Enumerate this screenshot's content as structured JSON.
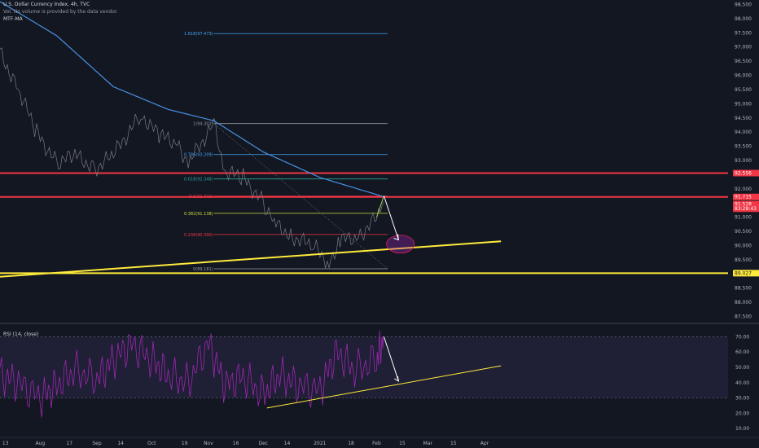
{
  "header": {
    "title": "U.S. Dollar Currency Index, 4h, TVC",
    "volume_note": "Vol. No volume is provided by the data vendor.",
    "indicator": "MTF-MA"
  },
  "rsi_title": "RSI (14, close)",
  "colors": {
    "background": "#131722",
    "price_line": "#787b86",
    "ma_line": "#4a90e2",
    "resistance": "#f23645",
    "support": "#ffeb3b",
    "rsi_line": "#9c27b0",
    "rsi_band": "#7e57c2",
    "arrow": "#ffffff"
  },
  "chart_data": [
    {
      "type": "line",
      "title": "U.S. Dollar Currency Index, 4h, TVC",
      "x_ticks": [
        "13",
        "Aug",
        "17",
        "Sep",
        "14",
        "Oct",
        "19",
        "Nov",
        "16",
        "Dec",
        "14",
        "2021",
        "18",
        "Feb",
        "15",
        "Mar",
        "15",
        "Apr"
      ],
      "y_ticks": [
        "98.500",
        "98.000",
        "97.500",
        "97.000",
        "96.500",
        "96.000",
        "95.500",
        "95.000",
        "94.500",
        "94.000",
        "93.500",
        "93.000",
        "92.500",
        "92.000",
        "91.500",
        "91.000",
        "90.500",
        "90.000",
        "89.500",
        "89.000",
        "88.500",
        "88.000",
        "87.500"
      ],
      "ylim": [
        87.4,
        98.6
      ],
      "price_badges": [
        {
          "value": "92.556",
          "color": "#f23645"
        },
        {
          "value": "91.715",
          "color": "#f23645"
        },
        {
          "value": "91.528",
          "color": "#f23645"
        },
        {
          "value": "83:28:43",
          "color": "#f23645"
        },
        {
          "value": "89.027",
          "color": "#ffeb3b"
        }
      ],
      "series": [
        {
          "name": "",
          "x": [
            "Jul 10",
            "Jul 20",
            "Jul 30",
            "Aug 10",
            "Aug 20",
            "Aug 31",
            "Sep 10",
            "Sep 25",
            "Oct 5",
            "Oct 15",
            "Oct 21",
            "Nov 4",
            "Nov 10",
            "Nov 20",
            "Dec 1",
            "Dec 7",
            "Dec 17",
            "Dec 28",
            "Jan 6",
            "Jan 12",
            "Jan 22",
            "Feb 1",
            "Feb 5"
          ],
          "y": [
            96.8,
            95.5,
            94.0,
            92.9,
            93.2,
            92.7,
            93.2,
            94.6,
            93.9,
            93.6,
            92.9,
            94.3,
            92.6,
            92.4,
            91.5,
            90.8,
            90.3,
            90.0,
            89.4,
            90.2,
            90.3,
            91.0,
            91.55
          ]
        },
        {
          "name": "",
          "x": [
            "Jul 10",
            "Aug 10",
            "Sep 10",
            "Oct 10",
            "Nov 4",
            "Dec 1",
            "Jan 1",
            "Feb 5"
          ],
          "y": [
            98.6,
            97.4,
            95.6,
            94.8,
            94.4,
            93.3,
            92.4,
            91.72
          ]
        }
      ],
      "fibonacci": [
        {
          "ratio": "1.618",
          "label": "1.618(97.473)",
          "value": 97.473,
          "color": "#42a5f5"
        },
        {
          "ratio": "1",
          "label": "1(94.302)",
          "value": 94.302,
          "color": "#9598a1"
        },
        {
          "ratio": "0.786",
          "label": "0.786(93.209)",
          "value": 93.209,
          "color": "#42a5f5"
        },
        {
          "ratio": "0.618",
          "label": "0.618(92.348)",
          "value": 92.348,
          "color": "#26a69a"
        },
        {
          "ratio": "0.5",
          "label": "0.5(91.743)",
          "value": 91.743,
          "color": "#f23645"
        },
        {
          "ratio": "0.382",
          "label": "0.382(91.138)",
          "value": 91.138,
          "color": "#cddc39"
        },
        {
          "ratio": "0.236",
          "label": "0.236(90.390)",
          "value": 90.39,
          "color": "#f23645"
        },
        {
          "ratio": "0",
          "label": "0(89.181)",
          "value": 89.181,
          "color": "#9598a1"
        }
      ],
      "horizontal_lines": [
        {
          "value": 92.556,
          "color": "#f23645"
        },
        {
          "value": 91.715,
          "color": "#f23645"
        },
        {
          "value": 89.027,
          "color": "#ffeb3b"
        }
      ],
      "trendline": {
        "from": [
          "Jul 10",
          88.9
        ],
        "to": [
          "Apr 10",
          90.15
        ],
        "color": "#ffeb3b"
      },
      "projection_arrow": {
        "from": [
          "Feb 5",
          91.75
        ],
        "to": [
          "Feb 13",
          90.2
        ]
      },
      "target_zone": {
        "center": [
          "Feb 14",
          90.05
        ]
      }
    },
    {
      "type": "line",
      "title": "RSI (14, close)",
      "y_ticks": [
        "70.00",
        "60.00",
        "50.00",
        "40.00",
        "30.00",
        "20.00",
        "10.00"
      ],
      "ylim": [
        8,
        75
      ],
      "band": [
        30,
        70
      ],
      "series": [
        {
          "name": "",
          "x": [
            "Jul 10",
            "Jul 20",
            "Aug 1",
            "Aug 10",
            "Aug 20",
            "Sep 1",
            "Sep 10",
            "Sep 20",
            "Oct 1",
            "Oct 10",
            "Oct 21",
            "Nov 1",
            "Nov 10",
            "Nov 20",
            "Dec 1",
            "Dec 10",
            "Dec 20",
            "Jan 1",
            "Jan 10",
            "Jan 20",
            "Feb 1",
            "Feb 5"
          ],
          "y": [
            45,
            40,
            30,
            38,
            48,
            42,
            55,
            65,
            55,
            45,
            40,
            66,
            38,
            44,
            32,
            45,
            38,
            35,
            60,
            48,
            55,
            70
          ]
        }
      ],
      "trendline": {
        "from": [
          "Dec 3",
          23.5
        ],
        "to": [
          "Apr 10",
          51
        ]
      },
      "arrow": {
        "from": [
          "Feb 5",
          70
        ],
        "to": [
          "Feb 13",
          41
        ]
      }
    }
  ]
}
